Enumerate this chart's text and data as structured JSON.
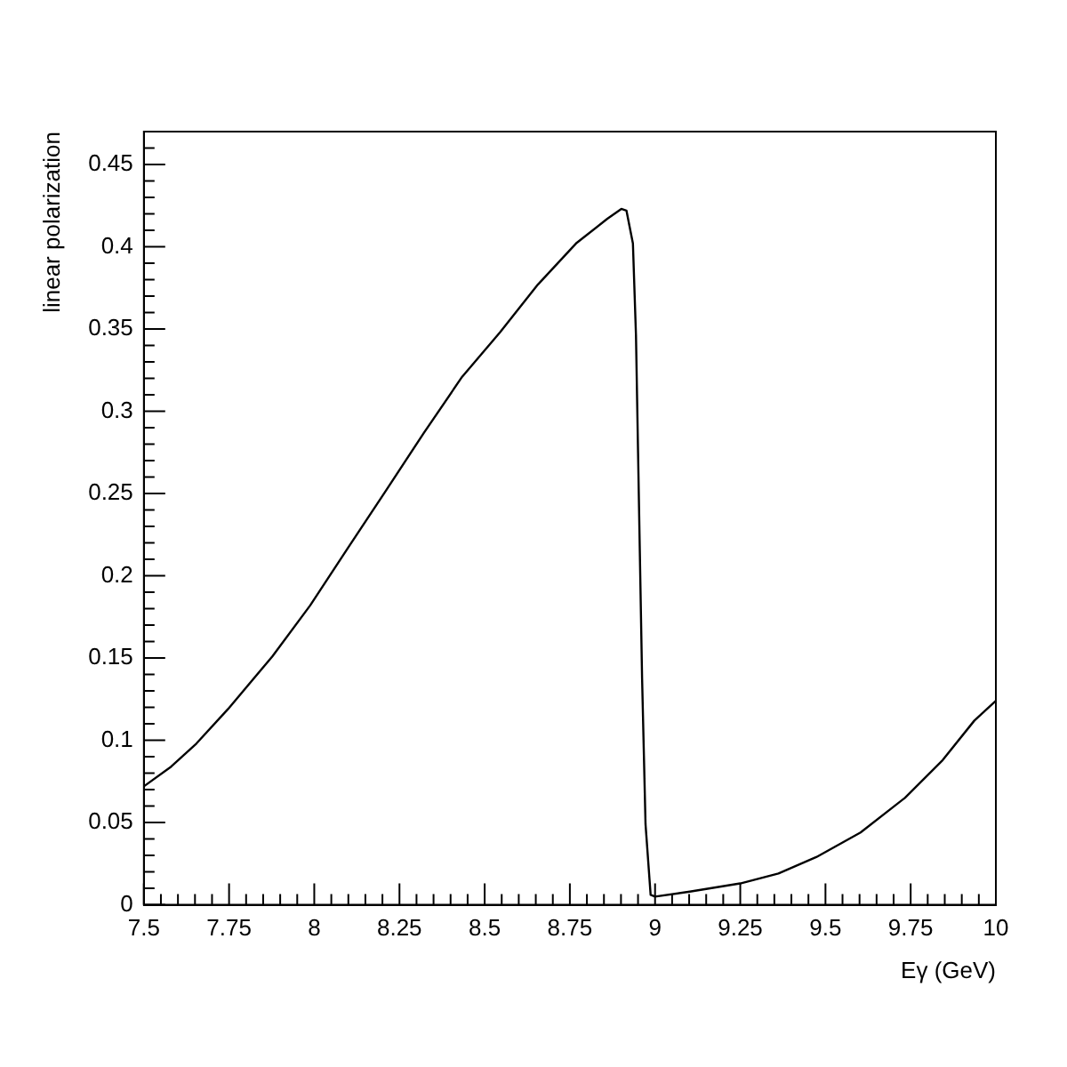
{
  "chart_data": {
    "type": "line",
    "xlabel": "Eγ (GeV)",
    "ylabel": "linear polarization",
    "x": [
      7.5,
      7.58,
      7.654,
      7.747,
      7.877,
      7.988,
      8.099,
      8.211,
      8.322,
      8.434,
      8.545,
      8.656,
      8.768,
      8.86,
      8.901,
      8.916,
      8.935,
      8.944,
      8.953,
      8.962,
      8.972,
      8.987,
      9.0,
      9.102,
      9.25,
      9.362,
      9.473,
      9.603,
      9.733,
      9.844,
      9.937,
      10.0
    ],
    "series": [
      {
        "color": "#000000",
        "values": [
          0.072,
          0.084,
          0.098,
          0.119,
          0.151,
          0.182,
          0.217,
          0.252,
          0.287,
          0.321,
          0.348,
          0.377,
          0.402,
          0.417,
          0.423,
          0.422,
          0.402,
          0.346,
          0.241,
          0.137,
          0.049,
          0.006,
          0.005,
          0.008,
          0.013,
          0.019,
          0.029,
          0.044,
          0.065,
          0.088,
          0.112,
          0.124
        ]
      }
    ],
    "xlim": [
      7.5,
      10
    ],
    "ylim": [
      0,
      0.47
    ],
    "xticks": [
      7.5,
      7.75,
      8,
      8.25,
      8.5,
      8.75,
      9,
      9.25,
      9.5,
      9.75,
      10
    ],
    "yticks": [
      0,
      0.05,
      0.1,
      0.15,
      0.2,
      0.25,
      0.3,
      0.35,
      0.4,
      0.45
    ],
    "grid": false,
    "legend": false,
    "marker": "none",
    "line_style": "solid"
  }
}
